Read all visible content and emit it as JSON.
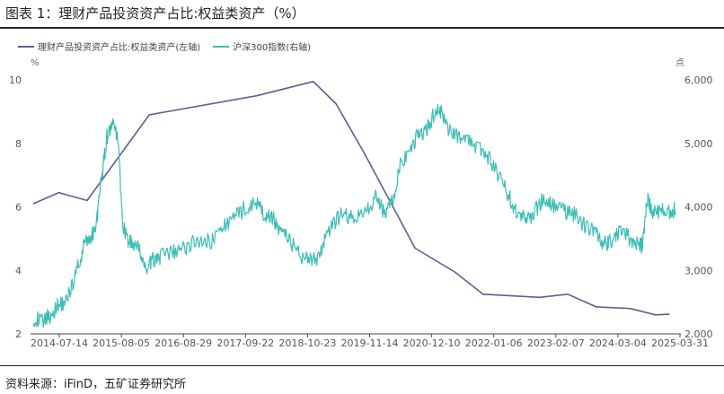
{
  "header": {
    "title": "图表 1：理财产品投资资产占比:权益类资产（%）"
  },
  "footer": {
    "source": "资料来源：iFinD，五矿证券研究所"
  },
  "chart_data": {
    "type": "line",
    "title": "理财产品投资资产占比:权益类资产（%）",
    "legend": [
      "理财产品投资资产占比:权益类资产(左轴)",
      "沪深300指数(右轴)"
    ],
    "left_axis": {
      "unit": "%",
      "ticks": [
        "2",
        "4",
        "6",
        "8",
        "10"
      ],
      "range": [
        2,
        10
      ]
    },
    "right_axis": {
      "unit": "点",
      "ticks": [
        "2,000",
        "3,000",
        "4,000",
        "5,000",
        "6,000"
      ],
      "range": [
        2000,
        6000
      ]
    },
    "x_ticks": [
      "2014-07-14",
      "2015-08-05",
      "2016-08-29",
      "2017-09-22",
      "2018-10-23",
      "2019-11-14",
      "2020-12-10",
      "2022-01-06",
      "2023-02-07",
      "2024-03-04",
      "2025-03-31"
    ],
    "x_range": [
      2013.9,
      2025.4
    ],
    "colors": {
      "left_series": "#5b5f97",
      "right_series": "#3dbdb4"
    },
    "series": [
      {
        "name": "理财产品投资资产占比:权益类资产(左轴)",
        "axis": "left",
        "x": [
          2013.95,
          2014.4,
          2014.9,
          2016.0,
          2017.9,
          2018.9,
          2019.3,
          2019.8,
          2020.7,
          2021.4,
          2021.9,
          2022.9,
          2023.4,
          2023.9,
          2024.5,
          2024.95,
          2025.2
        ],
        "values": [
          6.1,
          6.45,
          6.2,
          8.9,
          9.5,
          9.95,
          9.25,
          7.7,
          4.7,
          3.95,
          3.25,
          3.15,
          3.25,
          2.85,
          2.8,
          2.6,
          2.62
        ]
      },
      {
        "name": "沪深300指数(右轴)",
        "axis": "right",
        "x": [
          2013.95,
          2014.1,
          2014.25,
          2014.4,
          2014.55,
          2014.7,
          2014.85,
          2014.95,
          2015.05,
          2015.15,
          2015.25,
          2015.35,
          2015.45,
          2015.52,
          2015.6,
          2015.7,
          2015.8,
          2015.95,
          2016.05,
          2016.15,
          2016.3,
          2016.5,
          2016.7,
          2016.9,
          2017.1,
          2017.3,
          2017.5,
          2017.7,
          2017.9,
          2018.05,
          2018.2,
          2018.35,
          2018.5,
          2018.65,
          2018.8,
          2018.95,
          2019.1,
          2019.25,
          2019.4,
          2019.6,
          2019.8,
          2020.0,
          2020.15,
          2020.3,
          2020.45,
          2020.6,
          2020.75,
          2020.9,
          2021.05,
          2021.15,
          2021.3,
          2021.5,
          2021.7,
          2021.9,
          2022.05,
          2022.2,
          2022.35,
          2022.5,
          2022.65,
          2022.8,
          2022.95,
          2023.1,
          2023.3,
          2023.5,
          2023.7,
          2023.85,
          2024.0,
          2024.1,
          2024.2,
          2024.35,
          2024.5,
          2024.65,
          2024.72,
          2024.8,
          2024.9,
          2025.05,
          2025.2,
          2025.3
        ],
        "values": [
          2250,
          2200,
          2300,
          2450,
          2550,
          2950,
          3400,
          3500,
          3650,
          4400,
          5100,
          5300,
          5050,
          3800,
          3500,
          3400,
          3350,
          3000,
          3150,
          3200,
          3250,
          3300,
          3400,
          3500,
          3450,
          3700,
          3800,
          4000,
          4050,
          3850,
          3800,
          3600,
          3450,
          3250,
          3200,
          3150,
          3450,
          3700,
          3900,
          3800,
          3900,
          4150,
          3900,
          4100,
          4700,
          4800,
          5150,
          5200,
          5500,
          5500,
          5200,
          5100,
          5000,
          4900,
          4700,
          4450,
          4200,
          3900,
          3800,
          3900,
          4100,
          4050,
          3950,
          3900,
          3700,
          3650,
          3450,
          3400,
          3500,
          3600,
          3500,
          3400,
          3400,
          4150,
          3900,
          3950,
          3900,
          3950
        ]
      }
    ]
  }
}
